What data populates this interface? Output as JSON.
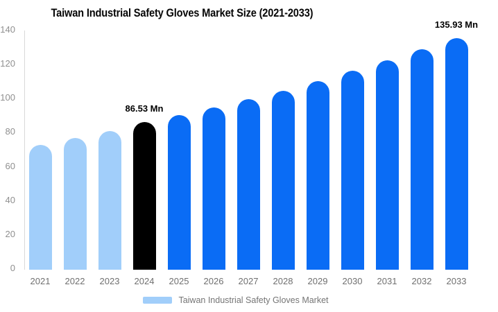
{
  "chart_data": {
    "type": "bar",
    "title": "Taiwan Industrial Safety Gloves Market Size (2021-2033)",
    "categories": [
      "2021",
      "2022",
      "2023",
      "2024",
      "2025",
      "2026",
      "2027",
      "2028",
      "2029",
      "2030",
      "2031",
      "2032",
      "2033"
    ],
    "values": [
      73.2,
      77.3,
      81.4,
      86.53,
      90.6,
      95.2,
      100.1,
      104.6,
      110.4,
      116.5,
      122.6,
      129.2,
      135.93
    ],
    "unit": "Mn",
    "xlabel": "",
    "ylabel": "",
    "ylim": [
      0,
      140
    ],
    "yticks": [
      0,
      20,
      40,
      60,
      80,
      100,
      120,
      140
    ],
    "grid": false,
    "bar_color_keys": [
      "historical",
      "historical",
      "historical",
      "highlight",
      "forecast",
      "forecast",
      "forecast",
      "forecast",
      "forecast",
      "forecast",
      "forecast",
      "forecast",
      "forecast"
    ],
    "colors": {
      "historical": "#A1CEFA",
      "highlight": "#000000",
      "forecast": "#0A6CF5",
      "axis_line": "#D8D8D8"
    },
    "annotations": [
      {
        "category": "2024",
        "text": "86.53 Mn"
      },
      {
        "category": "2033",
        "text": "135.93 Mn"
      }
    ],
    "legend": {
      "position": "bottom",
      "label": "Taiwan Industrial Safety Gloves Market",
      "swatch_color": "#A1CEFA"
    }
  }
}
